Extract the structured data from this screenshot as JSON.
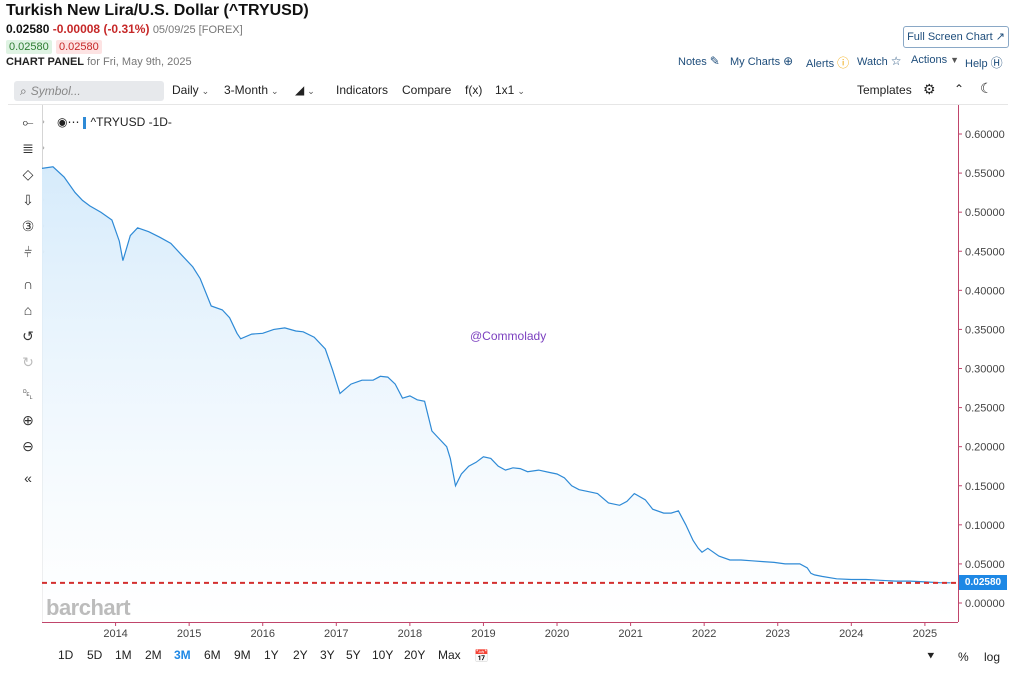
{
  "header": {
    "title": "Turkish New Lira/U.S. Dollar (^TRYUSD)",
    "last_price": "0.02580",
    "change": "-0.00008 (-0.31%)",
    "quote_date": "05/09/25 [FOREX]",
    "bid": "0.02580",
    "ask": "0.02580",
    "panel_label": "CHART PANEL",
    "panel_date": "for Fri, May 9th, 2025",
    "fullscreen_label": "Full Screen Chart",
    "links": {
      "notes": "Notes",
      "my_charts": "My Charts",
      "alerts": "Alerts",
      "watch": "Watch",
      "actions": "Actions",
      "help": "Help"
    }
  },
  "toolbar": {
    "symbol_placeholder": "Symbol...",
    "interval": "Daily",
    "period": "3-Month",
    "indicators": "Indicators",
    "compare": "Compare",
    "fx": "f(x)",
    "layout": "1x1",
    "templates": "Templates"
  },
  "legend": {
    "symbol": "^TRYUSD",
    "interval": "-1D-"
  },
  "annotation": "@Commolady",
  "brand": "barchart",
  "last_price_tag": "0.02580",
  "range_buttons": [
    "1D",
    "5D",
    "1M",
    "2M",
    "3M",
    "6M",
    "9M",
    "1Y",
    "2Y",
    "3Y",
    "5Y",
    "10Y",
    "20Y",
    "Max"
  ],
  "range_active": "3M",
  "scale_buttons": {
    "percent": "%",
    "log": "log"
  },
  "colors": {
    "line": "#2e8ad6",
    "area": "#d6ebfb",
    "reference_line": "#d32f2f",
    "axis": "#c0456b",
    "price_tag": "#1e88e5"
  },
  "chart_data": {
    "type": "area",
    "title": "",
    "xlabel": "",
    "ylabel": "",
    "xlim": [
      2013.0,
      2025.45
    ],
    "ylim": [
      0.0,
      0.62
    ],
    "y_ticks": [
      "0.60000",
      "0.55000",
      "0.50000",
      "0.45000",
      "0.40000",
      "0.35000",
      "0.30000",
      "0.25000",
      "0.20000",
      "0.15000",
      "0.10000",
      "0.05000",
      "0.00000"
    ],
    "x_ticks": [
      "2014",
      "2015",
      "2016",
      "2017",
      "2018",
      "2019",
      "2020",
      "2021",
      "2022",
      "2023",
      "2024",
      "2025"
    ],
    "reference_line": {
      "value": 0.0258,
      "style": "dashed"
    },
    "grid": false,
    "series": [
      {
        "x": [
          2013.0,
          2013.15,
          2013.3,
          2013.45,
          2013.55,
          2013.65,
          2013.8,
          2013.95,
          2014.05,
          2014.1,
          2014.2,
          2014.3,
          2014.45,
          2014.6,
          2014.75,
          2014.9,
          2015.05,
          2015.15,
          2015.3,
          2015.45,
          2015.55,
          2015.65,
          2015.7,
          2015.85,
          2016.0,
          2016.15,
          2016.3,
          2016.45,
          2016.55,
          2016.7,
          2016.85,
          2016.95,
          2017.05,
          2017.2,
          2017.35,
          2017.5,
          2017.6,
          2017.7,
          2017.8,
          2017.9,
          2018.0,
          2018.1,
          2018.2,
          2018.3,
          2018.4,
          2018.5,
          2018.55,
          2018.6,
          2018.62,
          2018.7,
          2018.8,
          2018.9,
          2019.0,
          2019.1,
          2019.2,
          2019.3,
          2019.4,
          2019.5,
          2019.6,
          2019.75,
          2019.9,
          2020.0,
          2020.1,
          2020.2,
          2020.3,
          2020.4,
          2020.55,
          2020.7,
          2020.85,
          2020.95,
          2021.05,
          2021.2,
          2021.3,
          2021.45,
          2021.55,
          2021.65,
          2021.75,
          2021.85,
          2021.92,
          2021.97,
          2022.05,
          2022.2,
          2022.35,
          2022.5,
          2022.65,
          2022.8,
          2022.95,
          2023.1,
          2023.3,
          2023.4,
          2023.45,
          2023.5,
          2023.6,
          2023.8,
          2024.0,
          2024.2,
          2024.4,
          2024.6,
          2024.8,
          2025.0,
          2025.2,
          2025.35
        ],
        "y": [
          0.556,
          0.558,
          0.545,
          0.525,
          0.515,
          0.508,
          0.5,
          0.49,
          0.463,
          0.438,
          0.47,
          0.48,
          0.475,
          0.468,
          0.46,
          0.445,
          0.43,
          0.415,
          0.38,
          0.375,
          0.365,
          0.345,
          0.338,
          0.344,
          0.345,
          0.35,
          0.352,
          0.348,
          0.347,
          0.34,
          0.325,
          0.298,
          0.268,
          0.28,
          0.285,
          0.285,
          0.29,
          0.289,
          0.28,
          0.262,
          0.265,
          0.26,
          0.258,
          0.22,
          0.21,
          0.2,
          0.185,
          0.16,
          0.15,
          0.165,
          0.175,
          0.18,
          0.187,
          0.185,
          0.175,
          0.17,
          0.173,
          0.172,
          0.168,
          0.17,
          0.167,
          0.165,
          0.16,
          0.15,
          0.145,
          0.143,
          0.14,
          0.128,
          0.125,
          0.13,
          0.14,
          0.132,
          0.12,
          0.115,
          0.115,
          0.118,
          0.1,
          0.08,
          0.07,
          0.065,
          0.07,
          0.06,
          0.055,
          0.055,
          0.054,
          0.053,
          0.052,
          0.05,
          0.05,
          0.045,
          0.038,
          0.036,
          0.034,
          0.031,
          0.03,
          0.03,
          0.029,
          0.028,
          0.028,
          0.027,
          0.026,
          0.0258
        ]
      }
    ]
  }
}
